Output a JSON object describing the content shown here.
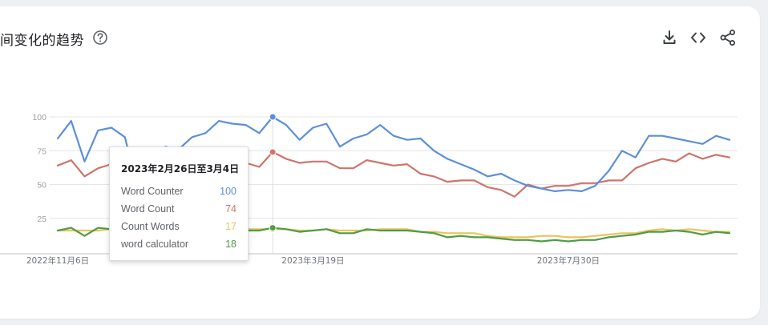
{
  "header": {
    "title": "间变化的趋势",
    "icons": {
      "help": "help-circle-icon",
      "download": "download-icon",
      "embed": "code-embed-icon",
      "share": "share-icon"
    }
  },
  "tooltip": {
    "date_range": "2023年2月26日至3月4日",
    "rows": [
      {
        "name": "Word Counter",
        "value": "100",
        "color": "#5b8fdb"
      },
      {
        "name": "Word Count",
        "value": "74",
        "color": "#d0736a"
      },
      {
        "name": "Count Words",
        "value": "17",
        "color": "#e8c45a"
      },
      {
        "name": "word calculator",
        "value": "18",
        "color": "#4f9c47"
      }
    ]
  },
  "chart_data": {
    "type": "line",
    "ylim": [
      0,
      100
    ],
    "yticks": [
      25,
      50,
      75,
      100
    ],
    "x_tick_labels": [
      {
        "index": 0,
        "label": "2022年11月6日"
      },
      {
        "index": 19,
        "label": "2023年3月19日"
      },
      {
        "index": 38,
        "label": "2023年7月30日"
      }
    ],
    "highlight_index": 16,
    "grid": true,
    "series": [
      {
        "name": "Word Counter",
        "color": "#5b8fdb",
        "values": [
          84,
          97,
          67,
          90,
          92,
          85,
          45,
          48,
          78,
          76,
          85,
          88,
          97,
          95,
          94,
          88,
          100,
          94,
          83,
          92,
          95,
          78,
          84,
          87,
          94,
          86,
          83,
          84,
          75,
          69,
          65,
          61,
          56,
          58,
          53,
          49,
          47,
          45,
          46,
          45,
          49,
          60,
          75,
          70,
          86,
          86,
          84,
          82,
          80,
          86,
          83
        ]
      },
      {
        "name": "Word Count",
        "color": "#d0736a",
        "values": [
          64,
          68,
          56,
          62,
          65,
          68,
          60,
          63,
          66,
          64,
          67,
          70,
          68,
          69,
          66,
          63,
          74,
          69,
          66,
          67,
          67,
          62,
          62,
          68,
          66,
          64,
          65,
          58,
          56,
          52,
          53,
          53,
          48,
          46,
          41,
          50,
          47,
          49,
          49,
          51,
          51,
          53,
          53,
          62,
          66,
          69,
          67,
          73,
          69,
          72,
          70
        ]
      },
      {
        "name": "Count Words",
        "color": "#e8c45a",
        "values": [
          16,
          16,
          16,
          16,
          17,
          16,
          16,
          16,
          16,
          16,
          17,
          17,
          17,
          16,
          17,
          17,
          17,
          17,
          16,
          16,
          17,
          16,
          16,
          16,
          17,
          17,
          17,
          15,
          15,
          14,
          14,
          14,
          12,
          11,
          11,
          11,
          12,
          12,
          11,
          11,
          12,
          13,
          14,
          14,
          16,
          17,
          16,
          17,
          16,
          15,
          15
        ]
      },
      {
        "name": "word calculator",
        "color": "#4f9c47",
        "values": [
          16,
          18,
          12,
          18,
          17,
          16,
          15,
          16,
          17,
          16,
          17,
          18,
          16,
          17,
          16,
          16,
          18,
          17,
          15,
          16,
          17,
          14,
          14,
          17,
          16,
          16,
          16,
          15,
          14,
          11,
          12,
          11,
          11,
          10,
          9,
          9,
          8,
          9,
          8,
          9,
          9,
          11,
          12,
          13,
          15,
          15,
          16,
          15,
          13,
          15,
          14
        ]
      }
    ]
  }
}
